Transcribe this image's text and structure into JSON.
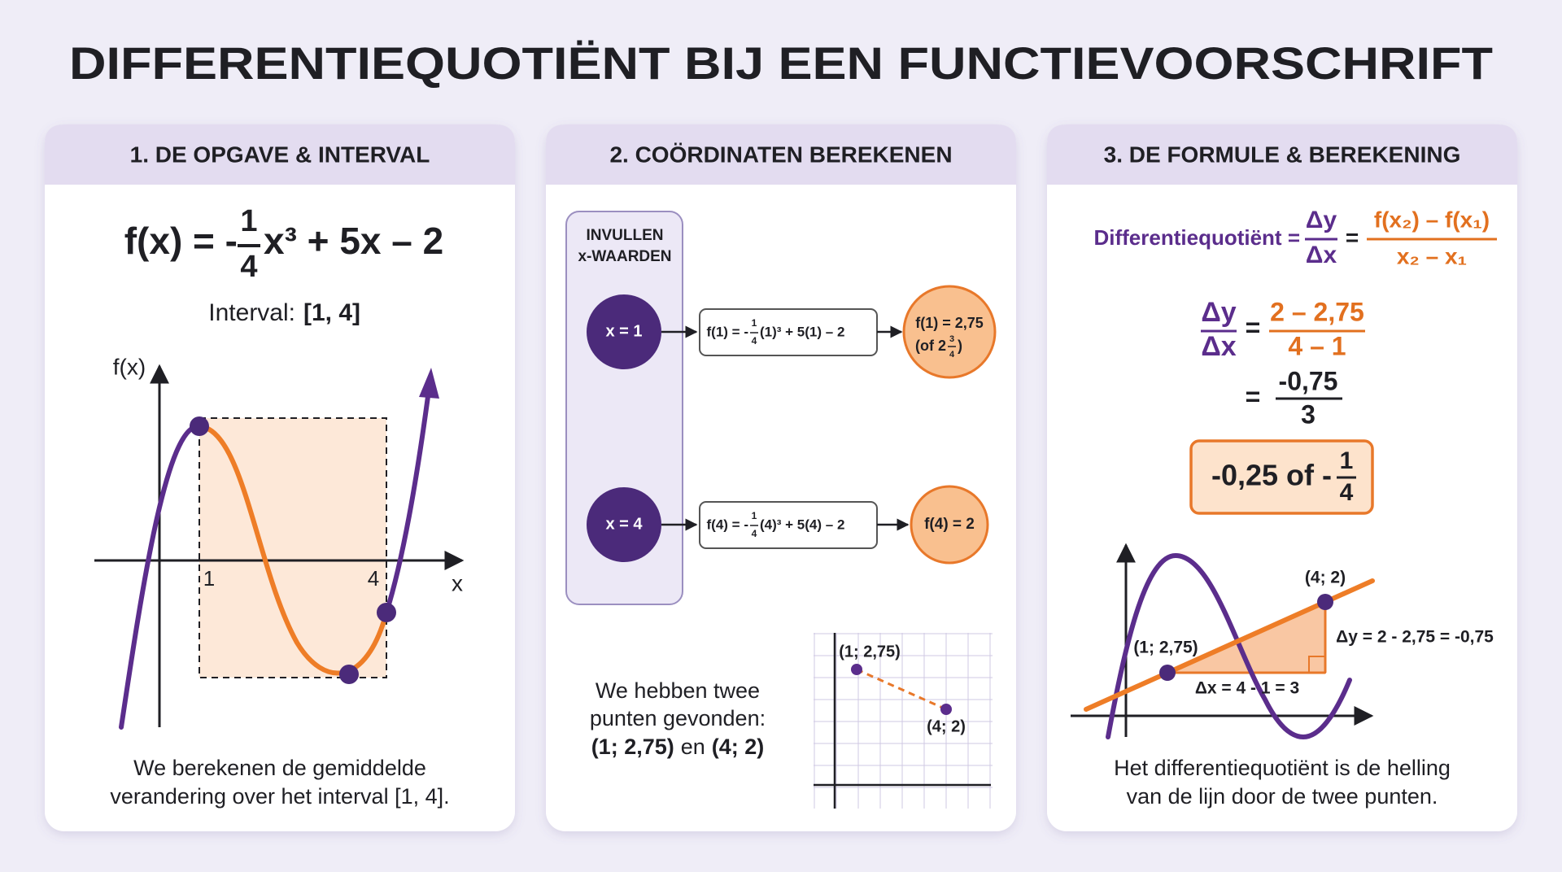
{
  "title": "DIFFERENTIEQUOTIËNT BIJ EEN FUNCTIEVOORSCHRIFT",
  "panels": [
    {
      "heading": "1. DE OPGAVE & INTERVAL",
      "formula": {
        "lhs": "f(x) = -",
        "num": "1",
        "den": "4",
        "rhs": "x³ + 5x – 2"
      },
      "interval": {
        "label": "Interval:",
        "value": "[1, 4]"
      },
      "graph": {
        "y_label": "f(x)",
        "x_label": "x",
        "tick_1": "1",
        "tick_4": "4"
      },
      "caption": [
        "We berekenen de gemiddelde",
        "verandering over het interval [1, 4]."
      ]
    },
    {
      "heading": "2. COÖRDINATEN BEREKENEN",
      "box": [
        "INVULLEN",
        "x-WAARDEN"
      ],
      "rows": [
        {
          "input": "x = 1",
          "formula": {
            "lhs": "f(1) = -",
            "num": "1",
            "den": "4",
            "rhs": "(1)³ + 5(1) – 2"
          },
          "result": "f(1) = 2,75",
          "alt": {
            "pre": "(of 2",
            "num": "3",
            "den": "4",
            "post": ")"
          }
        },
        {
          "input": "x = 4",
          "formula": {
            "lhs": "f(4) = -",
            "num": "1",
            "den": "4",
            "rhs": "(4)³ + 5(4) – 2"
          },
          "result": "f(4) = 2"
        }
      ],
      "caption": {
        "lines": [
          "We hebben twee",
          "punten gevonden:"
        ],
        "point_1": "(1; 2,75)",
        "joiner": "en",
        "point_2": "(4; 2)"
      },
      "graph": {
        "point_1": "(1; 2,75)",
        "point_2": "(4; 2)"
      }
    },
    {
      "heading": "3. DE FORMULE & BEREKENING",
      "definition": {
        "label": "Differentiequotiënt =",
        "dy": "Δy",
        "dx": "Δx",
        "eq": "=",
        "num": "f(x₂) – f(x₁)",
        "den": "x₂ – x₁"
      },
      "calculation": {
        "dy": "Δy",
        "dx": "Δx",
        "eq1": "=",
        "num1": "2 – 2,75",
        "den1": "4 – 1",
        "eq2": "=",
        "num2": "-0,75",
        "den2": "3"
      },
      "result": {
        "text": "-0,25 of -",
        "num": "1",
        "den": "4"
      },
      "graph": {
        "point_2": "(4; 2)",
        "point_1": "(1; 2,75)",
        "dy_label": "Δy = 2 - 2,75 = -0,75",
        "dx_label": "Δx = 4 - 1 = 3"
      },
      "caption": [
        "Het differentiequotiënt is de helling",
        "van de lijn door de twee punten."
      ]
    }
  ]
}
